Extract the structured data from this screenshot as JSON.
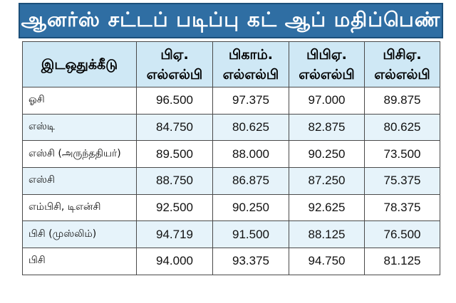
{
  "title": "ஆனர்ஸ் சட்டப் படிப்பு கட் ஆப் மதிப்பெண்",
  "table": {
    "category_header": "இடஒதுக்கீடு",
    "columns": [
      {
        "line1": "பிஏ.",
        "line2": "எல்எல்பி"
      },
      {
        "line1": "பிகாம்.",
        "line2": "எல்எல்பி"
      },
      {
        "line1": "பிபிஏ.",
        "line2": "எல்எல்பி"
      },
      {
        "line1": "பிசிஏ.",
        "line2": "எல்எல்பி"
      }
    ],
    "rows": [
      {
        "category": "ஓசி",
        "values": [
          "96.500",
          "97.375",
          "97.000",
          "89.875"
        ]
      },
      {
        "category": "எஸ்டி",
        "values": [
          "84.750",
          "80.625",
          "82.875",
          "80.625"
        ]
      },
      {
        "category": "எஸ்சி (அருந்ததியர்)",
        "values": [
          "89.500",
          "88.000",
          "90.250",
          "73.500"
        ]
      },
      {
        "category": "எஸ்சி",
        "values": [
          "88.750",
          "86.875",
          "87.250",
          "75.375"
        ]
      },
      {
        "category": "எம்பிசி, டிஎன்சி",
        "values": [
          "92.500",
          "90.250",
          "92.625",
          "78.375"
        ]
      },
      {
        "category": "பிசி (முஸ்லிம்)",
        "values": [
          "94.719",
          "91.500",
          "88.125",
          "76.500"
        ]
      },
      {
        "category": "பிசி",
        "values": [
          "94.000",
          "93.375",
          "94.750",
          "81.125"
        ]
      }
    ]
  }
}
